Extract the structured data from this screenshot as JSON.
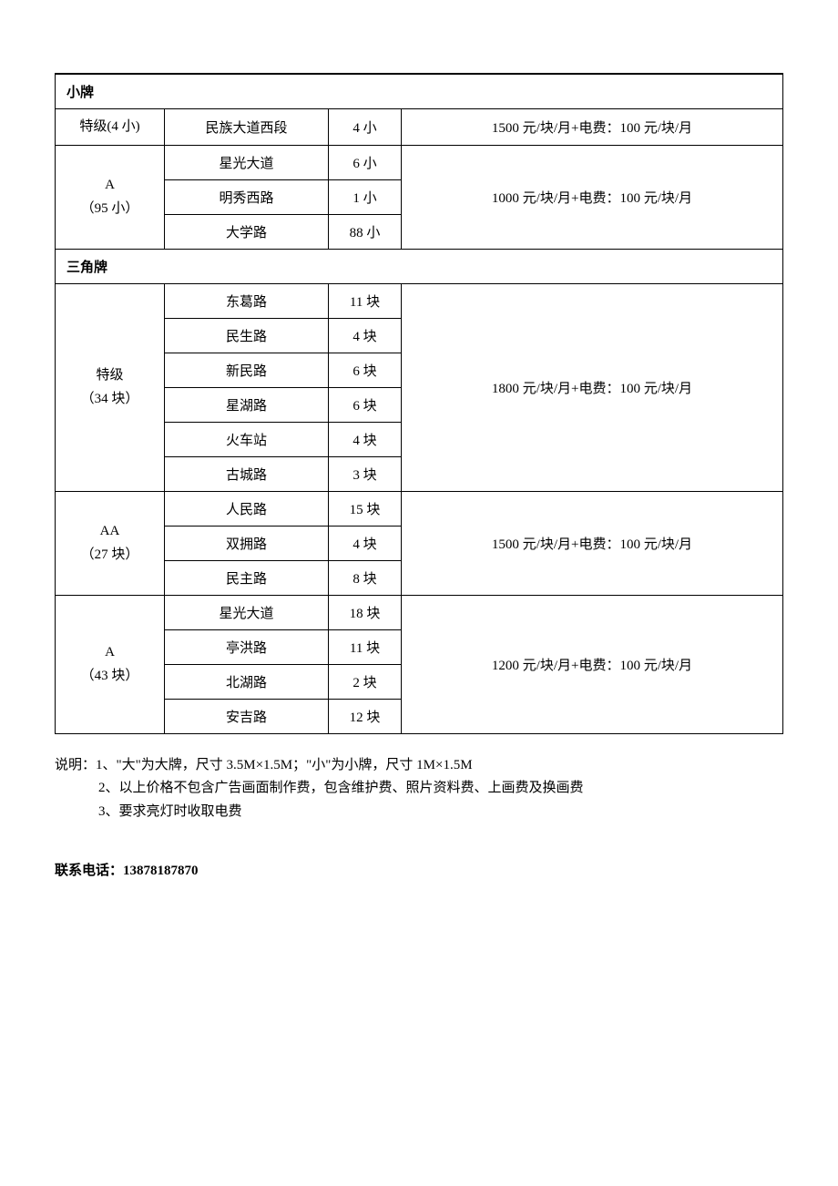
{
  "sections": [
    {
      "title": "小牌",
      "groups": [
        {
          "level": "特级(4 小)",
          "level_sub": "",
          "price": "1500 元/块/月+电费：100 元/块/月",
          "rows": [
            {
              "road": "民族大道西段",
              "qty": "4 小"
            }
          ]
        },
        {
          "level": "A",
          "level_sub": "（95 小）",
          "price": "1000 元/块/月+电费：100 元/块/月",
          "rows": [
            {
              "road": "星光大道",
              "qty": "6 小"
            },
            {
              "road": "明秀西路",
              "qty": "1 小"
            },
            {
              "road": "大学路",
              "qty": "88 小"
            }
          ]
        }
      ]
    },
    {
      "title": "三角牌",
      "groups": [
        {
          "level": "特级",
          "level_sub": "（34 块）",
          "price": "1800 元/块/月+电费：100 元/块/月",
          "rows": [
            {
              "road": "东葛路",
              "qty": "11 块"
            },
            {
              "road": "民生路",
              "qty": "4 块"
            },
            {
              "road": "新民路",
              "qty": "6 块"
            },
            {
              "road": "星湖路",
              "qty": "6 块"
            },
            {
              "road": "火车站",
              "qty": "4 块"
            },
            {
              "road": "古城路",
              "qty": "3 块"
            }
          ]
        },
        {
          "level": "AA",
          "level_sub": "（27 块）",
          "price": "1500 元/块/月+电费：100 元/块/月",
          "rows": [
            {
              "road": "人民路",
              "qty": "15 块"
            },
            {
              "road": "双拥路",
              "qty": "4 块"
            },
            {
              "road": "民主路",
              "qty": "8 块"
            }
          ]
        },
        {
          "level": "A",
          "level_sub": "（43 块）",
          "price": "1200 元/块/月+电费：100 元/块/月",
          "rows": [
            {
              "road": "星光大道",
              "qty": "18 块"
            },
            {
              "road": "亭洪路",
              "qty": "11 块"
            },
            {
              "road": "北湖路",
              "qty": "2 块"
            },
            {
              "road": "安吉路",
              "qty": "12 块"
            }
          ]
        }
      ]
    }
  ],
  "notes": {
    "prefix": "说明：",
    "lines": [
      "1、\"大\"为大牌，尺寸 3.5M×1.5M；\"小\"为小牌，尺寸 1M×1.5M",
      "2、以上价格不包含广告画面制作费，包含维护费、照片资料费、上画费及换画费",
      "3、要求亮灯时收取电费"
    ]
  },
  "contact": {
    "label": "联系电话：",
    "value": "13878187870"
  },
  "columns": {
    "level_width": 120,
    "road_width": 180,
    "qty_width": 80
  }
}
